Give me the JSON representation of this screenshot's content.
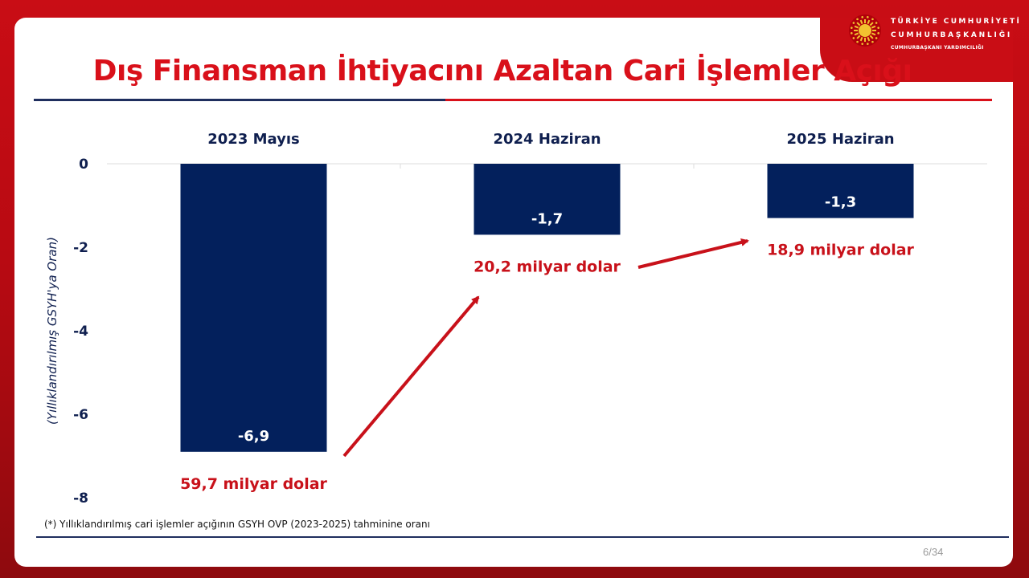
{
  "header": {
    "org_line1": "TÜRKİYE  CUMHURİYETİ",
    "org_line2": "CUMHURBAŞKANLIĞI",
    "org_line3": "CUMHURBAŞKANI YARDIMCILIĞI"
  },
  "title": "Dış Finansman İhtiyacını Azaltan Cari İşlemler Açığı",
  "footnote": "(*) Yıllıklandırılmış cari işlemler açığının GSYH OVP (2023-2025) tahminine oranı",
  "page_number": "6/34",
  "colors": {
    "bar": "#03205c",
    "accent": "#d9101a",
    "navy": "#1f2e5e"
  },
  "chart_data": {
    "type": "bar",
    "categories": [
      "2023 Mayıs",
      "2024 Haziran",
      "2025 Haziran"
    ],
    "values": [
      -6.9,
      -1.7,
      -1.3
    ],
    "value_labels": [
      "-6,9",
      "-1,7",
      "-1,3"
    ],
    "usd_annotations": [
      "59,7 milyar dolar",
      "20,2 milyar dolar",
      "18,9 milyar dolar"
    ],
    "ylabel": "(Yıllıklandırılmış GSYH'ya Oran)",
    "ylim": [
      -8,
      0
    ],
    "yticks": [
      0,
      -2,
      -4,
      -6,
      -8
    ],
    "ytick_labels": [
      "0",
      "-2",
      "-4",
      "-6",
      "-8"
    ],
    "grid": false,
    "category_axis_position": "top"
  }
}
